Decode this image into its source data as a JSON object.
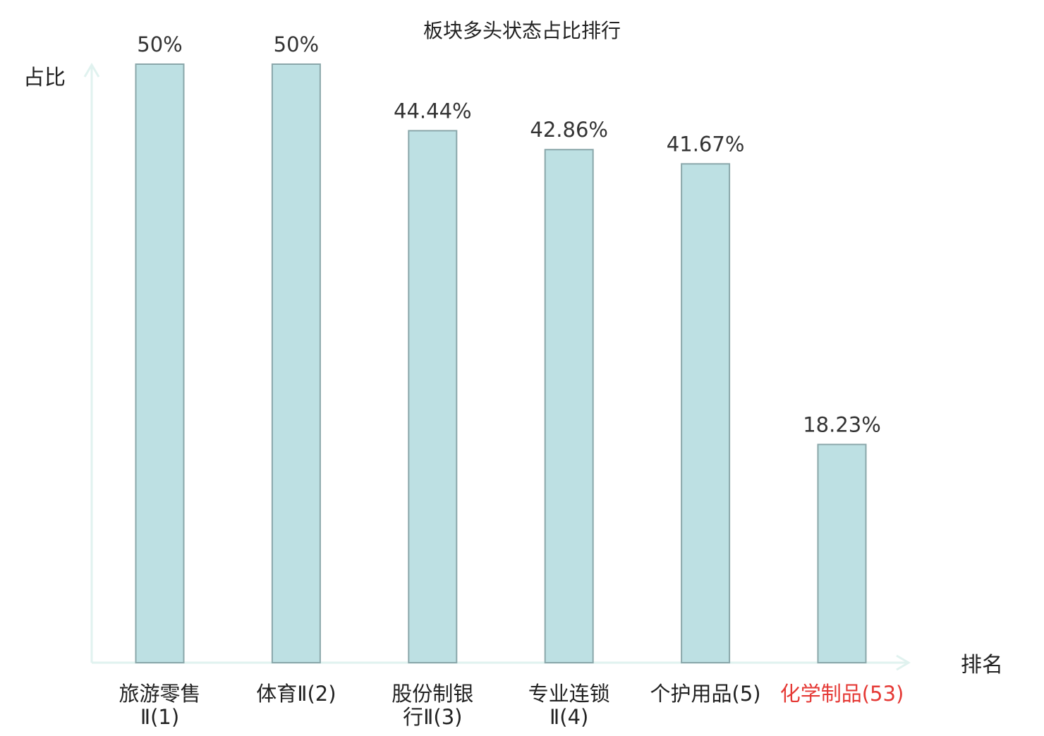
{
  "chart_data": {
    "type": "bar",
    "title": "板块多头状态占比排行",
    "ylabel": "占比",
    "xlabel": "排名",
    "ylim": [
      0,
      50
    ],
    "grid": false,
    "legend": "none",
    "categories": [
      {
        "lines": [
          "旅游零售",
          "Ⅱ(1)"
        ],
        "highlight": false
      },
      {
        "lines": [
          "体育Ⅱ(2)"
        ],
        "highlight": false
      },
      {
        "lines": [
          "股份制银",
          "行Ⅱ(3)"
        ],
        "highlight": false
      },
      {
        "lines": [
          "专业连锁",
          "Ⅱ(4)"
        ],
        "highlight": false
      },
      {
        "lines": [
          "个护用品(5)"
        ],
        "highlight": false
      },
      {
        "lines": [
          "化学制品(53)"
        ],
        "highlight": true
      }
    ],
    "values": [
      50,
      50,
      44.44,
      42.86,
      41.67,
      18.23
    ],
    "value_labels": [
      "50%",
      "50%",
      "44.44%",
      "42.86%",
      "41.67%",
      "18.23%"
    ],
    "colors": {
      "bar_fill": "#bde0e3",
      "bar_stroke": "#8aa7aa",
      "axis": "#e0f2ef",
      "text": "#333333",
      "highlight": "#e53935"
    }
  }
}
